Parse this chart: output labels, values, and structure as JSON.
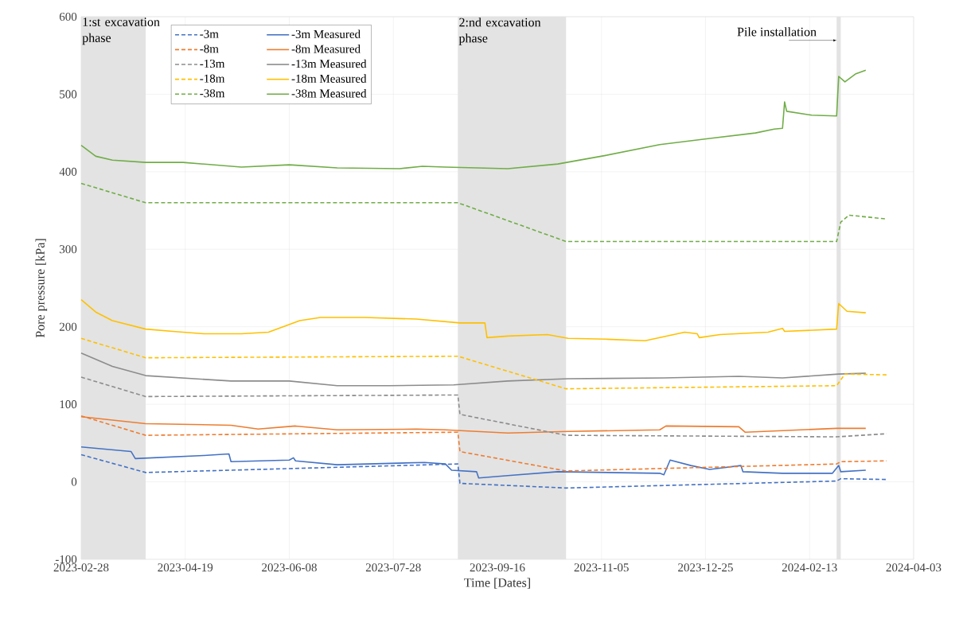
{
  "chart_data": {
    "type": "line",
    "xlabel": "Time [Dates]",
    "ylabel": "Pore pressure [kPa]",
    "xlim": [
      "2023-02-28",
      "2024-04-03"
    ],
    "xticks": [
      "2023-02-28",
      "2023-04-19",
      "2023-06-08",
      "2023-07-28",
      "2023-09-16",
      "2023-11-05",
      "2023-12-25",
      "2024-02-13",
      "2024-04-03"
    ],
    "ylim": [
      -100,
      600
    ],
    "yticks": [
      -100,
      0,
      100,
      200,
      300,
      400,
      500,
      600
    ],
    "grid": true,
    "legend": "top left",
    "bands": [
      {
        "axis": "x",
        "from": "2023-02-28",
        "to": "2023-03-31",
        "label": "1:st excavation phase",
        "color": "#e3e3e3"
      },
      {
        "axis": "x",
        "from": "2023-08-28",
        "to": "2023-10-19",
        "label": "2:nd excavation phase",
        "color": "#e3e3e3"
      },
      {
        "axis": "x",
        "from": "2024-02-26",
        "to": "2024-02-28",
        "label": "Pile installation",
        "color": "#e3e3e3"
      }
    ],
    "series": [
      {
        "name": "-3m",
        "color": "#4472c4",
        "line_style": "dashed",
        "x": [
          "2023-02-28",
          "2023-03-31",
          "2023-08-28",
          "2023-08-29",
          "2023-10-19",
          "2024-02-26",
          "2024-02-28",
          "2024-03-21"
        ],
        "values": [
          35,
          12,
          23,
          -2,
          -8,
          1,
          4,
          3
        ]
      },
      {
        "name": "-3m Measured",
        "color": "#4472c4",
        "line_style": "solid",
        "x": [
          "2023-02-28",
          "2023-03-24",
          "2023-03-26",
          "2023-04-28",
          "2023-05-10",
          "2023-05-11",
          "2023-06-08",
          "2023-06-10",
          "2023-06-11",
          "2023-07-01",
          "2023-08-12",
          "2023-08-22",
          "2023-08-25",
          "2023-09-06",
          "2023-09-07",
          "2023-09-21",
          "2023-10-15",
          "2023-12-03",
          "2023-12-05",
          "2023-12-08",
          "2023-12-18",
          "2023-12-27",
          "2024-01-11",
          "2024-01-12",
          "2024-01-31",
          "2024-02-24",
          "2024-02-27",
          "2024-02-28",
          "2024-03-11"
        ],
        "values": [
          45,
          39,
          30,
          34,
          36,
          26,
          28,
          31,
          27,
          22,
          25,
          23,
          15,
          13,
          5,
          8,
          13,
          11,
          9,
          28,
          21,
          16,
          21,
          13,
          11,
          11,
          21,
          13,
          15
        ]
      },
      {
        "name": "-8m",
        "color": "#ed7d31",
        "line_style": "dashed",
        "x": [
          "2023-02-28",
          "2023-03-31",
          "2023-08-28",
          "2023-08-29",
          "2023-10-19",
          "2024-02-26",
          "2024-02-28",
          "2024-03-21"
        ],
        "values": [
          85,
          60,
          64,
          39,
          14,
          23,
          26,
          27
        ]
      },
      {
        "name": "-8m Measured",
        "color": "#ed7d31",
        "line_style": "solid",
        "x": [
          "2023-02-28",
          "2023-03-31",
          "2023-05-11",
          "2023-05-24",
          "2023-06-11",
          "2023-07-01",
          "2023-08-08",
          "2023-08-22",
          "2023-09-21",
          "2023-10-20",
          "2023-12-03",
          "2023-12-06",
          "2024-01-10",
          "2024-01-13",
          "2024-01-31",
          "2024-02-26",
          "2024-03-11"
        ],
        "values": [
          84,
          75,
          73,
          68,
          72,
          67,
          68,
          67,
          63,
          65,
          67,
          72,
          71,
          64,
          66,
          69,
          69
        ]
      },
      {
        "name": "-13m",
        "color": "#8c8c8c",
        "line_style": "dashed",
        "x": [
          "2023-02-28",
          "2023-03-31",
          "2023-08-28",
          "2023-08-29",
          "2023-10-19",
          "2024-02-26",
          "2024-03-21"
        ],
        "values": [
          135,
          110,
          112,
          87,
          60,
          58,
          62
        ]
      },
      {
        "name": "-13m Measured",
        "color": "#8c8c8c",
        "line_style": "solid",
        "x": [
          "2023-02-28",
          "2023-03-15",
          "2023-03-31",
          "2023-05-11",
          "2023-06-08",
          "2023-07-01",
          "2023-07-26",
          "2023-08-26",
          "2023-09-21",
          "2023-10-20",
          "2023-12-05",
          "2024-01-10",
          "2024-01-31",
          "2024-02-27",
          "2024-03-11"
        ],
        "values": [
          166,
          149,
          137,
          130,
          130,
          124,
          124,
          125,
          130,
          133,
          134,
          136,
          134,
          139,
          140
        ]
      },
      {
        "name": "-18m",
        "color": "#ffc000",
        "line_style": "dashed",
        "x": [
          "2023-02-28",
          "2023-03-31",
          "2023-08-28",
          "2023-10-19",
          "2024-02-26",
          "2024-03-01",
          "2024-03-21"
        ],
        "values": [
          185,
          160,
          162,
          120,
          124,
          139,
          138
        ]
      },
      {
        "name": "-18m Measured",
        "color": "#ffc000",
        "line_style": "solid",
        "x": [
          "2023-02-28",
          "2023-03-07",
          "2023-03-15",
          "2023-03-31",
          "2023-04-13",
          "2023-04-28",
          "2023-05-16",
          "2023-05-29",
          "2023-06-03",
          "2023-06-13",
          "2023-06-23",
          "2023-07-14",
          "2023-08-08",
          "2023-08-29",
          "2023-09-10",
          "2023-09-11",
          "2023-09-21",
          "2023-10-10",
          "2023-10-20",
          "2023-11-07",
          "2023-11-26",
          "2023-12-15",
          "2023-12-21",
          "2023-12-22",
          "2024-01-01",
          "2024-01-24",
          "2024-01-31",
          "2024-02-01",
          "2024-02-26",
          "2024-02-27",
          "2024-03-02",
          "2024-03-11"
        ],
        "values": [
          235,
          219,
          208,
          197,
          194,
          191,
          191,
          193,
          198,
          208,
          212,
          212,
          210,
          205,
          205,
          186,
          188,
          190,
          185,
          184,
          182,
          193,
          191,
          186,
          190,
          193,
          198,
          194,
          197,
          230,
          220,
          218
        ]
      },
      {
        "name": "-38m",
        "color": "#70ad47",
        "line_style": "dashed",
        "x": [
          "2023-02-28",
          "2023-03-31",
          "2023-08-28",
          "2023-10-19",
          "2024-02-26",
          "2024-02-28",
          "2024-03-03",
          "2024-03-21"
        ],
        "values": [
          385,
          360,
          360,
          310,
          310,
          335,
          344,
          339
        ]
      },
      {
        "name": "-38m Measured",
        "color": "#70ad47",
        "line_style": "solid",
        "x": [
          "2023-02-28",
          "2023-03-07",
          "2023-03-15",
          "2023-03-31",
          "2023-04-18",
          "2023-05-16",
          "2023-06-08",
          "2023-07-01",
          "2023-07-31",
          "2023-08-11",
          "2023-08-22",
          "2023-09-21",
          "2023-10-15",
          "2023-11-07",
          "2023-12-03",
          "2023-12-27",
          "2024-01-18",
          "2024-01-27",
          "2024-01-31",
          "2024-02-01",
          "2024-02-02",
          "2024-02-14",
          "2024-02-26",
          "2024-02-27",
          "2024-03-01",
          "2024-03-06",
          "2024-03-11"
        ],
        "values": [
          434,
          420,
          415,
          412,
          412,
          406,
          409,
          405,
          404,
          407,
          406,
          404,
          410,
          421,
          435,
          443,
          450,
          455,
          456,
          490,
          478,
          473,
          472,
          523,
          516,
          526,
          531
        ]
      }
    ]
  }
}
